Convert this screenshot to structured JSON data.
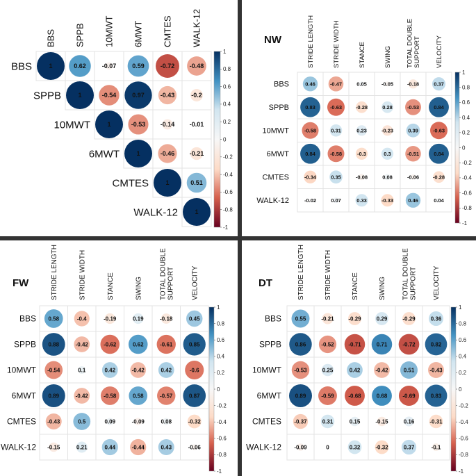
{
  "colors": {
    "strong_blue": "#053061",
    "mid_blue": "#4393c3",
    "light_blue": "#d1e5f0",
    "white": "#f7f7f7",
    "light_red": "#fddbc7",
    "mid_red": "#d6604d",
    "strong_red": "#67001f",
    "separator": "#333333",
    "cell_border": "#e3e3e3"
  },
  "chart_data": [
    {
      "type": "heatmap",
      "title": "",
      "layout": "upper-triangle",
      "columns": [
        "BBS",
        "SPPB",
        "10MWT",
        "6MWT",
        "CMTES",
        "WALK-12"
      ],
      "rows": [
        "BBS",
        "SPPB",
        "10MWT",
        "6MWT",
        "CMTES",
        "WALK-12"
      ],
      "values": [
        [
          1,
          0.62,
          -0.07,
          0.59,
          -0.72,
          -0.48
        ],
        [
          null,
          1,
          -0.54,
          0.97,
          -0.43,
          -0.2
        ],
        [
          null,
          null,
          1,
          -0.53,
          -0.14,
          -0.01
        ],
        [
          null,
          null,
          null,
          1,
          -0.46,
          -0.21
        ],
        [
          null,
          null,
          null,
          null,
          1,
          0.51
        ],
        [
          null,
          null,
          null,
          null,
          null,
          1
        ]
      ],
      "colorbar": {
        "range": [
          -1,
          1
        ],
        "ticks": [
          "1",
          "0.8",
          "0.6",
          "0.4",
          "0.2",
          "0",
          "-0.2",
          "-0.4",
          "-0.6",
          "-0.8",
          "-1"
        ]
      }
    },
    {
      "type": "heatmap",
      "title": "NW",
      "layout": "full",
      "columns": [
        "STRIDE LENGTH",
        "STRIDE WIDTH",
        "STANCE",
        "SWING",
        "TOTAL DOUBLE SUPPORT",
        "VELOCITY"
      ],
      "rows": [
        "BBS",
        "SPPB",
        "10MWT",
        "6MWT",
        "CMTES",
        "WALK-12"
      ],
      "values": [
        [
          0.46,
          -0.47,
          0.05,
          -0.05,
          -0.18,
          0.37
        ],
        [
          0.83,
          -0.63,
          -0.28,
          0.28,
          -0.53,
          0.84
        ],
        [
          -0.58,
          0.31,
          0.23,
          -0.23,
          0.39,
          -0.63
        ],
        [
          0.84,
          -0.58,
          -0.3,
          0.3,
          -0.51,
          0.84
        ],
        [
          -0.34,
          0.35,
          -0.08,
          0.08,
          -0.06,
          -0.28
        ],
        [
          -0.02,
          0.07,
          0.33,
          -0.33,
          0.46,
          0.04
        ]
      ],
      "colorbar": {
        "range": [
          -1,
          1
        ],
        "ticks": [
          "1",
          "0.8",
          "0.6",
          "0.4",
          "0.2",
          "0",
          "-0.2",
          "-0.4",
          "-0.6",
          "-0.8",
          "-1"
        ]
      }
    },
    {
      "type": "heatmap",
      "title": "FW",
      "layout": "full",
      "columns": [
        "STRIDE LENGTH",
        "STRIDE WIDTH",
        "STANCE",
        "SWING",
        "TOTAL DOUBLE SUPPORT",
        "VELOCITY"
      ],
      "rows": [
        "BBS",
        "SPPB",
        "10MWT",
        "6MWT",
        "CMTES",
        "WALK-12"
      ],
      "values": [
        [
          0.58,
          -0.4,
          -0.19,
          0.19,
          -0.18,
          0.45
        ],
        [
          0.88,
          -0.42,
          -0.62,
          0.62,
          -0.61,
          0.85
        ],
        [
          -0.54,
          0.1,
          0.42,
          -0.42,
          0.42,
          -0.6
        ],
        [
          0.89,
          -0.42,
          -0.58,
          0.58,
          -0.57,
          0.87
        ],
        [
          -0.43,
          0.5,
          0.09,
          -0.09,
          0.08,
          -0.32
        ],
        [
          -0.15,
          0.21,
          0.44,
          -0.44,
          0.43,
          -0.06
        ]
      ],
      "colorbar": {
        "range": [
          -1,
          1
        ],
        "ticks": [
          "1",
          "0.8",
          "0.6",
          "0.4",
          "0.2",
          "0",
          "-0.2",
          "-0.4",
          "-0.6",
          "-0.8",
          "-1"
        ]
      }
    },
    {
      "type": "heatmap",
      "title": "DT",
      "layout": "full",
      "columns": [
        "STRIDE LENGTH",
        "STRIDE WIDTH",
        "STANCE",
        "SWING",
        "TOTAL DOUBLE SUPPORT",
        "VELOCITY"
      ],
      "rows": [
        "BBS",
        "SPPB",
        "10MWT",
        "6MWT",
        "CMTES",
        "WALK-12"
      ],
      "values": [
        [
          0.55,
          -0.21,
          -0.29,
          0.29,
          -0.29,
          0.36
        ],
        [
          0.86,
          -0.52,
          -0.71,
          0.71,
          -0.72,
          0.82
        ],
        [
          -0.53,
          0.25,
          0.42,
          -0.42,
          0.51,
          -0.43
        ],
        [
          0.89,
          -0.59,
          -0.68,
          0.68,
          -0.69,
          0.83
        ],
        [
          -0.37,
          0.31,
          0.15,
          -0.15,
          0.16,
          -0.31
        ],
        [
          -0.09,
          0,
          0.32,
          -0.32,
          0.37,
          -0.1
        ]
      ],
      "colorbar": {
        "range": [
          -1,
          1
        ],
        "ticks": [
          "1",
          "0.8",
          "0.6",
          "0.4",
          "0.2",
          "0",
          "-0.2",
          "-0.4",
          "-0.6",
          "-0.8",
          "-1"
        ]
      }
    }
  ]
}
